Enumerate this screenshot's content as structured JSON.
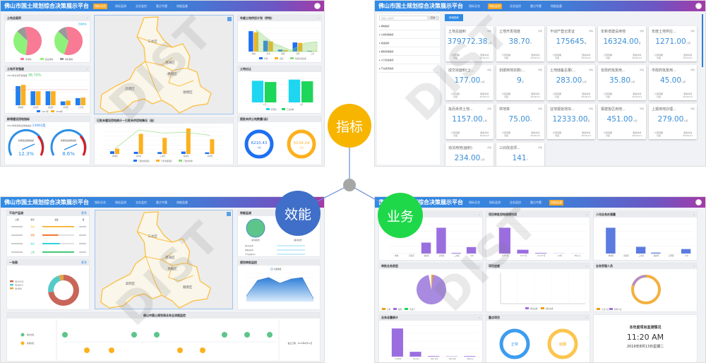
{
  "app_title": "佛山市国土规划综合决策展示平台",
  "nav": [
    "指标总览",
    "指标监测",
    "业务监控",
    "重点专题",
    "效能监督"
  ],
  "watermark": "DIST",
  "hub": {
    "indicators": {
      "label": "指标",
      "color": "#f7b500"
    },
    "efficiency": {
      "label": "效能",
      "color": "#3f6fc8"
    },
    "business": {
      "label": "业务",
      "color": "#1fd84a"
    }
  },
  "districts": [
    "三水区",
    "南海区",
    "禅城区",
    "高明区",
    "顺德区"
  ],
  "overview": {
    "land_area": {
      "title": "土地总面积",
      "more": "查看更多",
      "legend": [
        "农用地",
        "建设用地",
        "未利用地"
      ],
      "pies": [
        [
          55,
          35,
          10
        ],
        [
          58,
          32,
          10
        ]
      ],
      "colors": [
        "#f87a94",
        "#8ef27a",
        "#999999"
      ]
    },
    "dev_intensity": {
      "title": "土地开发强度",
      "subtitle": "2019年全市开发强度",
      "value": "38.70%",
      "legend": [
        "2017年",
        "2018年"
      ],
      "categories": [
        "禅城区",
        "南海区",
        "顺德区",
        "高明区",
        "三水区"
      ],
      "series": [
        [
          75,
          55,
          55,
          15,
          28
        ],
        [
          80,
          55,
          55,
          18,
          30
        ]
      ]
    },
    "new_land": {
      "title": "新增建设用地指标",
      "subtitle": "2019年新增建设用地指标",
      "value": "13061亩",
      "gauges": [
        {
          "label": "新增建设用地指标",
          "value": "12.3%"
        },
        {
          "label": "新增建设用地指标",
          "value": "8.6%"
        }
      ]
    },
    "supply_plan": {
      "title": "年度土地供应计划（宗地）",
      "legend": [
        "计划",
        "实际",
        "年度计划完成"
      ],
      "series": [
        [
          850,
          450,
          80,
          380,
          30
        ],
        [
          800,
          420,
          60,
          360,
          20
        ]
      ],
      "categories": [
        "禅城",
        "南海",
        "顺德",
        "高明",
        "三水"
      ]
    },
    "land_transfer": {
      "title": "土地出让",
      "legend": [
        "经营性",
        "工业用地"
      ],
      "series": [
        [
          900,
          950
        ],
        [
          850,
          880
        ]
      ],
      "categories": [
        "1月",
        "2月"
      ]
    },
    "stock": {
      "title": "已批未建设用地统计—已批未供用地情况（亩）",
      "legend": [
        "已批未供面积",
        "已供未建面积",
        "已批未供率"
      ],
      "categories": [
        "禅城区",
        "南海区",
        "三水区",
        "顺德区",
        "高明区"
      ],
      "blue": [
        10,
        8,
        7,
        9,
        6
      ],
      "orange": [
        20,
        75,
        60,
        95,
        55
      ],
      "line": [
        20,
        90,
        78,
        80,
        70
      ]
    },
    "approval": {
      "title": "报批未供土地数量(亩)",
      "rings": [
        {
          "value": "6210.43",
          "unit": "公顷",
          "color": "#1e6ff2"
        },
        {
          "value": "5134.24",
          "unit": "公顷",
          "color": "#fdb01d"
        }
      ]
    }
  },
  "indicator_page": {
    "search_placeholder": "请输入关键字",
    "search_button": "查询",
    "tree": [
      "用地指标",
      "土地利用指标",
      "建设指标",
      "规划实施指标",
      "人口社会指标",
      "产业经济指标"
    ],
    "tab": "用地指标",
    "detail": "详情",
    "period_label": "计算周期",
    "period": "月度",
    "update_label": "更新时间",
    "update": "2019/1/1",
    "cards": [
      {
        "name": "土地总面积",
        "value": "379772.38",
        "unit": "公顷"
      },
      {
        "name": "土地开发强度",
        "value": "38.70",
        "unit": "%"
      },
      {
        "name": "不动产登记发证",
        "value": "175645",
        "unit": "本"
      },
      {
        "name": "年新增建设用地",
        "value": "16324.00",
        "unit": "亩"
      },
      {
        "name": "年度土地供应...",
        "value": "1271.00",
        "unit": "公顷"
      },
      {
        "name": "成交宗面积(土...",
        "value": "177.00",
        "unit": "公顷"
      },
      {
        "name": "划拨用地宗数(...",
        "value": "9",
        "unit": "宗"
      },
      {
        "name": "土地储备总量(...",
        "value": "283.00",
        "unit": "公顷"
      },
      {
        "name": "省政府批复用...",
        "value": "35.80",
        "unit": "公顷"
      },
      {
        "name": "市政府批复用...",
        "value": "45.00",
        "unit": "公顷"
      },
      {
        "name": "批而未供土地...",
        "value": "1157.00",
        "unit": "公顷"
      },
      {
        "name": "供地率",
        "value": "75.00",
        "unit": "%"
      },
      {
        "name": "征地报批地块...",
        "value": "12333.00",
        "unit": "亩"
      },
      {
        "name": "报建各区用地...",
        "value": "451.00",
        "unit": "公顷"
      },
      {
        "name": "上报用地办理...",
        "value": "279.00",
        "unit": "公顷"
      },
      {
        "name": "违法用地(面积)",
        "value": "234.00",
        "unit": "公顷"
      },
      {
        "name": "三旧改造项...",
        "value": "141",
        "unit": "个"
      }
    ]
  },
  "efficiency_page": {
    "estate": {
      "title": "不动产监测",
      "more": "更多",
      "cols": [
        "日期",
        "类型",
        "进度",
        "量"
      ],
      "rows": [
        {
          "type": "完成",
          "fill": 100,
          "color": "#fbb634"
        },
        {
          "type": "受理",
          "fill": 50,
          "color": "#f26a1b"
        },
        {
          "type": "发证",
          "fill": 55,
          "color": "#1fd0db"
        },
        {
          "type": "上报",
          "fill": 100,
          "color": "#32c46c"
        }
      ]
    },
    "onemap": {
      "title": "一张图",
      "legend": [
        "项目已完成",
        "项目进行中",
        "项目延期"
      ],
      "slices": [
        73,
        22,
        5
      ],
      "colors": [
        "#c9665a",
        "#55cbc8",
        "#e0a44a"
      ]
    },
    "perf": {
      "title": "效能监测",
      "labels": [
        "按时办结",
        "超时办结"
      ],
      "bars": [
        "按时办结率",
        "超期办结率",
        "平均办理时间"
      ]
    },
    "approval_monitor": {
      "title": "规划审批监控",
      "legend": "审批数量",
      "values": [
        20,
        75,
        85,
        65,
        80,
        85,
        10
      ]
    },
    "timeline": {
      "title": "佛山市国土规划局业务全流程监控",
      "legend": [
        "按时办结",
        "超期办结"
      ],
      "deadline": "截止日期：2019年8月12日"
    }
  },
  "business_page": {
    "charts": [
      {
        "title": "",
        "values": [
          5,
          10,
          1700,
          4000,
          100,
          1000
        ],
        "color": "#9b6ee0",
        "categories": [
          "禅城",
          "南海区",
          "顺德区",
          "高明区",
          "三水区",
          "全市"
        ]
      },
      {
        "title": "项目审批用地规模利用",
        "values": [
          1700,
          250,
          40,
          10,
          5
        ],
        "color": "#9b6ee0",
        "categories": [
          "1-3个月",
          "3-6个月",
          "6-12个月",
          "1-2年",
          "2年以上"
        ]
      },
      {
        "title": "人均业务办理量",
        "values": [
          115,
          0,
          30,
          4,
          0,
          20
        ],
        "color": "#5b7be0",
        "categories": [
          "禅城区",
          "南海区",
          "三水区",
          "顺德区",
          "高明区",
          "全市"
        ]
      }
    ],
    "pie": {
      "title": "审批业务类型",
      "legend": [
        "土地",
        "规划",
        "不动产"
      ]
    },
    "progress": {
      "title": "项目进度",
      "legend": [
        "按时完成",
        "超时完成"
      ]
    },
    "staff": {
      "title": "业务受理人员",
      "legend": [
        "正式人员",
        "外聘人员"
      ]
    },
    "total": {
      "title": "业务总量统计",
      "values": [
        14500,
        2500,
        300,
        150,
        300
      ],
      "categories": [
        "0-5000",
        "5k-10k",
        "10k-15k",
        "15k-20k",
        "20k以上"
      ]
    },
    "project": {
      "title": "重点项目",
      "normal": "正常",
      "delay": "延期"
    },
    "clock": {
      "title": "本年度项目监测情况",
      "time": "11:20 AM",
      "date": "2019年8月13日星期二"
    }
  }
}
